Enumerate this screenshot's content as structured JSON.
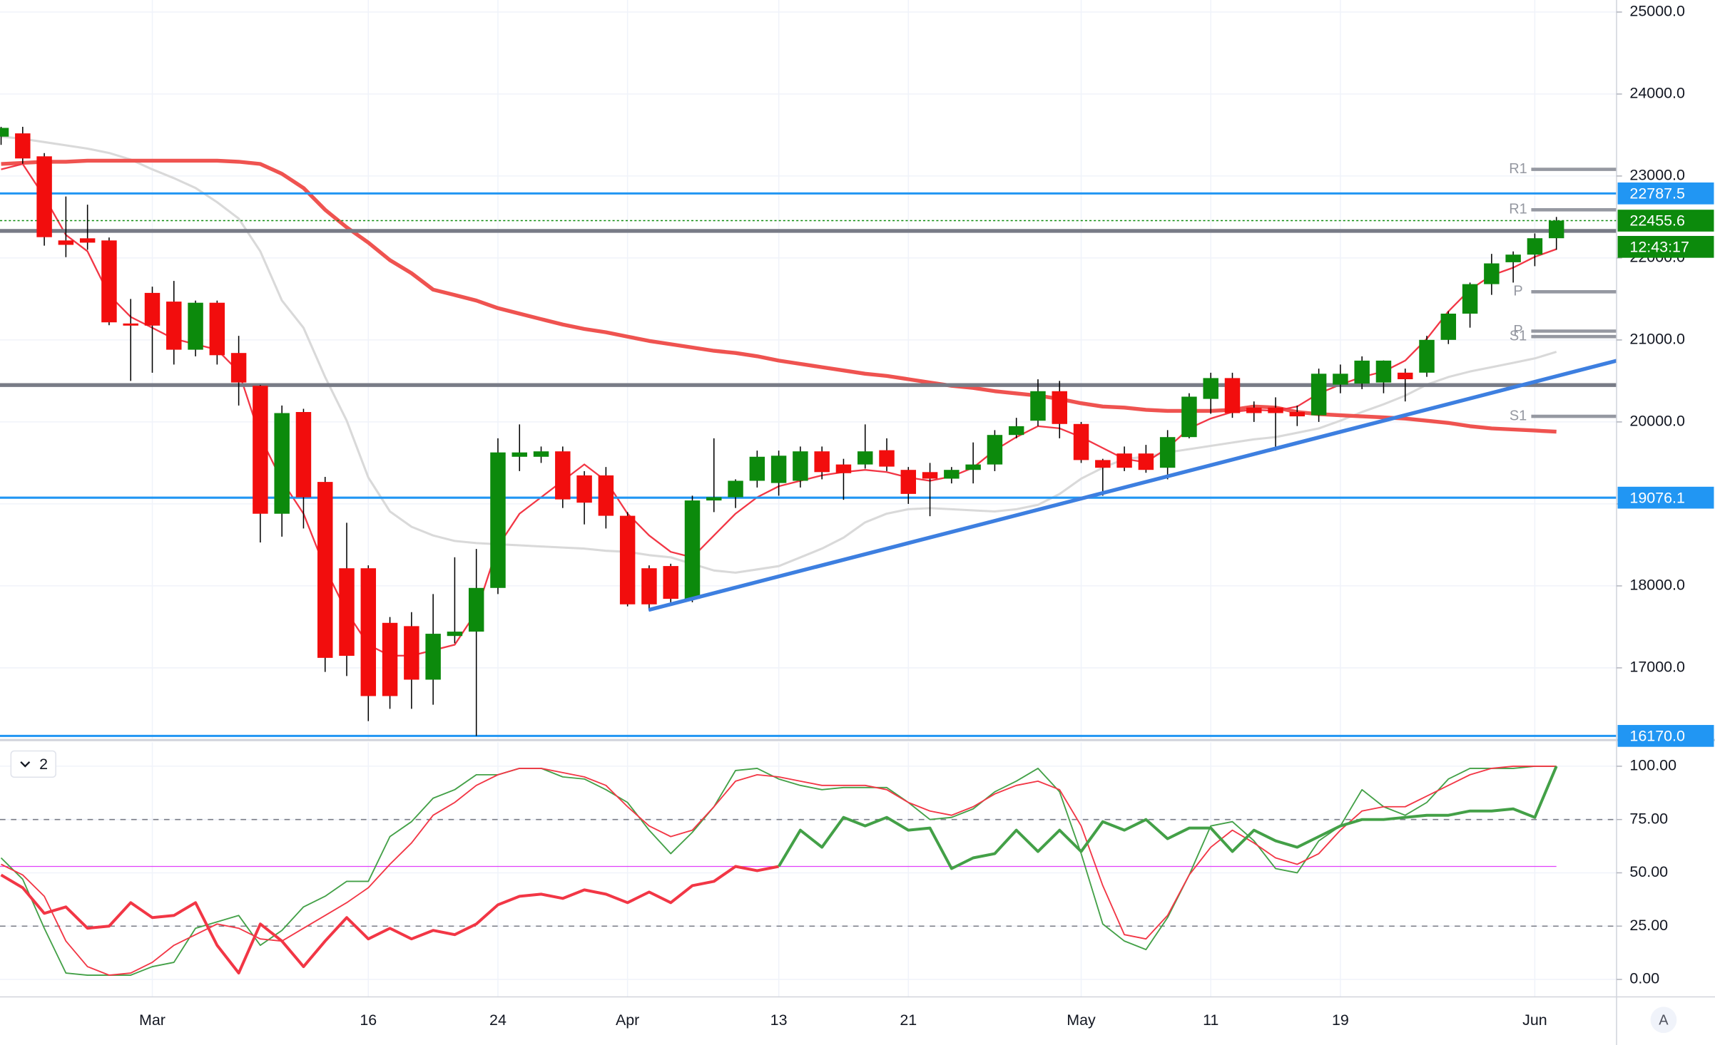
{
  "chart_data": [
    {
      "type": "candlestick",
      "categories": [
        null,
        null,
        null,
        null,
        null,
        null,
        null,
        "Mar",
        null,
        null,
        null,
        null,
        null,
        null,
        null,
        null,
        null,
        "16",
        null,
        null,
        null,
        null,
        null,
        "24",
        null,
        null,
        null,
        null,
        null,
        "Apr",
        null,
        null,
        null,
        null,
        null,
        null,
        "13",
        null,
        null,
        null,
        null,
        null,
        "21",
        null,
        null,
        null,
        null,
        null,
        null,
        null,
        "May",
        null,
        null,
        null,
        null,
        null,
        "11",
        null,
        null,
        null,
        null,
        null,
        "19",
        null,
        null,
        null,
        null,
        null,
        null,
        null,
        null,
        "Jun",
        null
      ],
      "ohlc": [
        [
          23480,
          23600,
          23380,
          23587
        ],
        [
          23520,
          23600,
          23150,
          23214
        ],
        [
          23240,
          23280,
          22150,
          22254
        ],
        [
          22214,
          22750,
          22010,
          22160
        ],
        [
          22240,
          22650,
          22100,
          22187
        ],
        [
          22214,
          22250,
          21180,
          21215
        ],
        [
          21201,
          21500,
          20500,
          21175
        ],
        [
          21574,
          21650,
          20600,
          21175
        ],
        [
          21468,
          21720,
          20700,
          20881
        ],
        [
          20881,
          21480,
          20800,
          21454
        ],
        [
          21454,
          21480,
          20700,
          20814
        ],
        [
          20841,
          21050,
          20200,
          20481
        ],
        [
          20441,
          20450,
          18530,
          18880
        ],
        [
          18880,
          20200,
          18600,
          20108
        ],
        [
          20121,
          20160,
          18700,
          19081
        ],
        [
          19268,
          19330,
          16950,
          17122
        ],
        [
          18215,
          18770,
          16900,
          17147
        ],
        [
          18215,
          18250,
          16350,
          16656
        ],
        [
          17549,
          17620,
          16500,
          16656
        ],
        [
          17509,
          17680,
          16500,
          16856
        ],
        [
          16856,
          17900,
          16550,
          17416
        ],
        [
          17389,
          18349,
          17300,
          17442
        ],
        [
          17442,
          18450,
          16170,
          17975
        ],
        [
          17975,
          19800,
          17900,
          19628
        ],
        [
          19575,
          19970,
          19400,
          19628
        ],
        [
          19575,
          19700,
          19500,
          19641
        ],
        [
          19641,
          19700,
          18950,
          19055
        ],
        [
          19348,
          19400,
          18750,
          19015
        ],
        [
          19348,
          19450,
          18700,
          18855
        ],
        [
          18855,
          18900,
          17750,
          17775
        ],
        [
          18215,
          18250,
          17700,
          17775
        ],
        [
          18242,
          18270,
          17800,
          17842
        ],
        [
          17842,
          19100,
          17800,
          19042
        ],
        [
          19042,
          19800,
          18900,
          19082
        ],
        [
          19082,
          19300,
          18950,
          19282
        ],
        [
          19282,
          19650,
          19200,
          19575
        ],
        [
          19255,
          19650,
          19100,
          19588
        ],
        [
          19282,
          19700,
          19200,
          19641
        ],
        [
          19641,
          19700,
          19300,
          19388
        ],
        [
          19481,
          19550,
          19050,
          19375
        ],
        [
          19481,
          19970,
          19430,
          19641
        ],
        [
          19655,
          19800,
          19400,
          19455
        ],
        [
          19415,
          19450,
          19000,
          19122
        ],
        [
          19388,
          19500,
          18850,
          19308
        ],
        [
          19308,
          19450,
          19250,
          19415
        ],
        [
          19415,
          19750,
          19250,
          19481
        ],
        [
          19481,
          19900,
          19400,
          19841
        ],
        [
          19841,
          20050,
          19800,
          19948
        ],
        [
          20015,
          20520,
          19950,
          20375
        ],
        [
          20375,
          20500,
          19800,
          19975
        ],
        [
          19975,
          20000,
          19500,
          19535
        ],
        [
          19535,
          19550,
          19100,
          19441
        ],
        [
          19615,
          19700,
          19400,
          19441
        ],
        [
          19615,
          19720,
          19380,
          19415
        ],
        [
          19441,
          19900,
          19300,
          19815
        ],
        [
          19815,
          20350,
          19800,
          20308
        ],
        [
          20281,
          20600,
          20100,
          20535
        ],
        [
          20535,
          20600,
          20050,
          20108
        ],
        [
          20175,
          20250,
          20000,
          20108
        ],
        [
          20175,
          20300,
          19650,
          20108
        ],
        [
          20121,
          20200,
          19950,
          20068
        ],
        [
          20081,
          20650,
          20000,
          20588
        ],
        [
          20455,
          20700,
          20350,
          20588
        ],
        [
          20468,
          20800,
          20400,
          20748
        ],
        [
          20481,
          20750,
          20350,
          20748
        ],
        [
          20601,
          20650,
          20250,
          20521
        ],
        [
          20601,
          21050,
          20550,
          21001
        ],
        [
          21001,
          21350,
          20950,
          21321
        ],
        [
          21321,
          21700,
          21150,
          21681
        ],
        [
          21681,
          22050,
          21550,
          21934
        ],
        [
          21948,
          22080,
          21700,
          22041
        ],
        [
          22041,
          22300,
          21900,
          22241
        ],
        [
          22241,
          22500,
          22100,
          22455.6
        ]
      ],
      "up_color": "#0c8a0c",
      "down_color": "#f20d0d",
      "series": [
        {
          "color": "#d9d9d9",
          "line_width": 2,
          "values": [
            23481,
            23454,
            23414,
            23374,
            23334,
            23281,
            23201,
            23081,
            22974,
            22854,
            22681,
            22481,
            22081,
            21481,
            21148,
            20548,
            20015,
            19322,
            18908,
            18721,
            18615,
            18548,
            18522,
            18508,
            18495,
            18481,
            18468,
            18455,
            18428,
            18415,
            18375,
            18348,
            18268,
            18188,
            18161,
            18201,
            18241,
            18348,
            18455,
            18588,
            18775,
            18881,
            18935,
            18948,
            18935,
            18921,
            18908,
            18935,
            18988,
            19121,
            19308,
            19441,
            19548,
            19575,
            19628,
            19668,
            19708,
            19748,
            19788,
            19815,
            19868,
            19921,
            20015,
            20121,
            20215,
            20321,
            20455,
            20548,
            20615,
            20668,
            20721,
            20775,
            20855
          ]
        },
        {
          "color": "#ef5350",
          "line_width": 3.5,
          "values": [
            23147,
            23160,
            23174,
            23174,
            23187,
            23187,
            23187,
            23187,
            23187,
            23187,
            23187,
            23174,
            23147,
            23027,
            22854,
            22588,
            22374,
            22188,
            21974,
            21814,
            21614,
            21548,
            21481,
            21388,
            21321,
            21254,
            21188,
            21134,
            21094,
            21041,
            20988,
            20948,
            20908,
            20868,
            20841,
            20801,
            20748,
            20708,
            20668,
            20628,
            20588,
            20561,
            20521,
            20481,
            20441,
            20415,
            20375,
            20348,
            20321,
            20281,
            20228,
            20188,
            20175,
            20148,
            20135,
            20135,
            20135,
            20148,
            20188,
            20175,
            20121,
            20095,
            20081,
            20068,
            20055,
            20041,
            20015,
            19988,
            19948,
            19921,
            19908,
            19895,
            19881
          ]
        },
        {
          "color": "#f23645",
          "line_width": 1.5,
          "values": [
            23081,
            23147,
            22747,
            22281,
            22081,
            21548,
            21281,
            21148,
            21014,
            20948,
            20881,
            20615,
            19815,
            19282,
            18881,
            18215,
            17682,
            17282,
            17149,
            17149,
            17215,
            17282,
            17682,
            18482,
            18881,
            19081,
            19282,
            19482,
            19282,
            18881,
            18615,
            18415,
            18348,
            18615,
            18881,
            19081,
            19215,
            19282,
            19348,
            19388,
            19415,
            19388,
            19322,
            19282,
            19335,
            19442,
            19655,
            19815,
            19948,
            19922,
            19815,
            19682,
            19548,
            19508,
            19682,
            19922,
            20042,
            20122,
            20148,
            20135,
            20188,
            20348,
            20455,
            20548,
            20615,
            20748,
            21014,
            21348,
            21615,
            21788,
            21882,
            22014,
            22108
          ]
        }
      ],
      "ylim": [
        16133,
        25147
      ],
      "yticks": [
        {
          "value": 17000,
          "label": "17000.0"
        },
        {
          "value": 18000,
          "label": "18000.0"
        },
        {
          "value": 19000,
          "label": "19000.0"
        },
        {
          "value": 20000,
          "label": "20000.0"
        },
        {
          "value": 21000,
          "label": "21000.0"
        },
        {
          "value": 22000,
          "label": "22000.0"
        },
        {
          "value": 23000,
          "label": "23000.0"
        },
        {
          "value": 24000,
          "label": "24000.0"
        },
        {
          "value": 25000,
          "label": "25000.0"
        }
      ],
      "grid": true,
      "price_lines": [
        22787.5,
        19076.1,
        {
          "value": 16170,
          "label": "16170.0"
        }
      ],
      "price_line_color": "#2196f3",
      "last_price": 22455.6,
      "last_price_color": "#0c8a0c",
      "countdown": "12:43:17",
      "levels": [
        22330,
        20450
      ],
      "level_color": "#787b86",
      "pivots": [
        {
          "label": "R1",
          "value": 23081
        },
        {
          "label": "R1",
          "value": 22588
        },
        {
          "label": "P",
          "value": 21588
        },
        {
          "label": "P",
          "value": 21108
        },
        {
          "label": "S1",
          "value": 21041
        },
        {
          "label": "S1",
          "value": 20068
        }
      ]
    },
    {
      "type": "line",
      "label": "2",
      "series": [
        {
          "color": "#43a047",
          "line_width": 1.2,
          "values": [
            57,
            47,
            24,
            3,
            2,
            2,
            2,
            6,
            8,
            24,
            27,
            30,
            16,
            23,
            34,
            39,
            46,
            46,
            67,
            74,
            85,
            89,
            96,
            96,
            99,
            99,
            95,
            94,
            89,
            83,
            70,
            59,
            69,
            81,
            98,
            99,
            94,
            91,
            89,
            90,
            90,
            90,
            83,
            75,
            76,
            80,
            88,
            93,
            99,
            88,
            59,
            26,
            18,
            14,
            29,
            49,
            72,
            74,
            65,
            52,
            50,
            65,
            72,
            89,
            81,
            77,
            83,
            94,
            99,
            99,
            99,
            100,
            100
          ]
        },
        {
          "color": "#f23645",
          "line_width": 1.2,
          "values": [
            54,
            49,
            39,
            18,
            6,
            2,
            3,
            8,
            16,
            21,
            26,
            24,
            19,
            18,
            24,
            30,
            36,
            43,
            54,
            64,
            77,
            83,
            91,
            96,
            99,
            99,
            97,
            95,
            91,
            81,
            72,
            67,
            70,
            81,
            93,
            96,
            95,
            93,
            91,
            91,
            91,
            89,
            83,
            79,
            77,
            81,
            87,
            91,
            93,
            89,
            72,
            44,
            21,
            19,
            30,
            49,
            62,
            70,
            64,
            57,
            54,
            59,
            70,
            79,
            81,
            81,
            86,
            91,
            96,
            99,
            100,
            100,
            100
          ]
        },
        {
          "color": "#f23645",
          "line_width": 2.6,
          "values": [
            49,
            43,
            31,
            34,
            24,
            25,
            36,
            29,
            30,
            36,
            16,
            3,
            26,
            18,
            6,
            18,
            29,
            19,
            24,
            19,
            23,
            21,
            26,
            35,
            39,
            40,
            38,
            42,
            40,
            36,
            41,
            36,
            44,
            46,
            53,
            51,
            53,
            null,
            null,
            null,
            null,
            null,
            null,
            null,
            null,
            null,
            null,
            null,
            null,
            null,
            null,
            null,
            null,
            null,
            null,
            null,
            null,
            null,
            null,
            null,
            null,
            null,
            null,
            null,
            null,
            null,
            null,
            null,
            null,
            null,
            null,
            null,
            null
          ]
        },
        {
          "color": "#43a047",
          "line_width": 2.6,
          "values": [
            null,
            null,
            null,
            null,
            null,
            null,
            null,
            null,
            null,
            null,
            null,
            null,
            null,
            null,
            null,
            null,
            null,
            null,
            null,
            null,
            null,
            null,
            null,
            null,
            null,
            null,
            null,
            null,
            null,
            null,
            null,
            null,
            null,
            null,
            null,
            null,
            53,
            70,
            62,
            76,
            72,
            76,
            70,
            71,
            52,
            57,
            59,
            70,
            60,
            70,
            60,
            74,
            70,
            75,
            66,
            71,
            71,
            60,
            70,
            65,
            62,
            67,
            72,
            75,
            75,
            76,
            77,
            77,
            79,
            79,
            80,
            76,
            100
          ]
        }
      ],
      "ylim": [
        -8.2,
        108.7
      ],
      "yticks": [
        {
          "value": 0,
          "label": "0.00"
        },
        {
          "value": 25,
          "label": "25.00"
        },
        {
          "value": 50,
          "label": "50.00"
        },
        {
          "value": 75,
          "label": "75.00"
        },
        {
          "value": 100,
          "label": "100.00"
        }
      ],
      "bands": [
        25,
        75
      ],
      "band_color": "#787b86",
      "midline": 53,
      "midline_color": "#e040fb"
    }
  ],
  "auto_scale_label": "A"
}
